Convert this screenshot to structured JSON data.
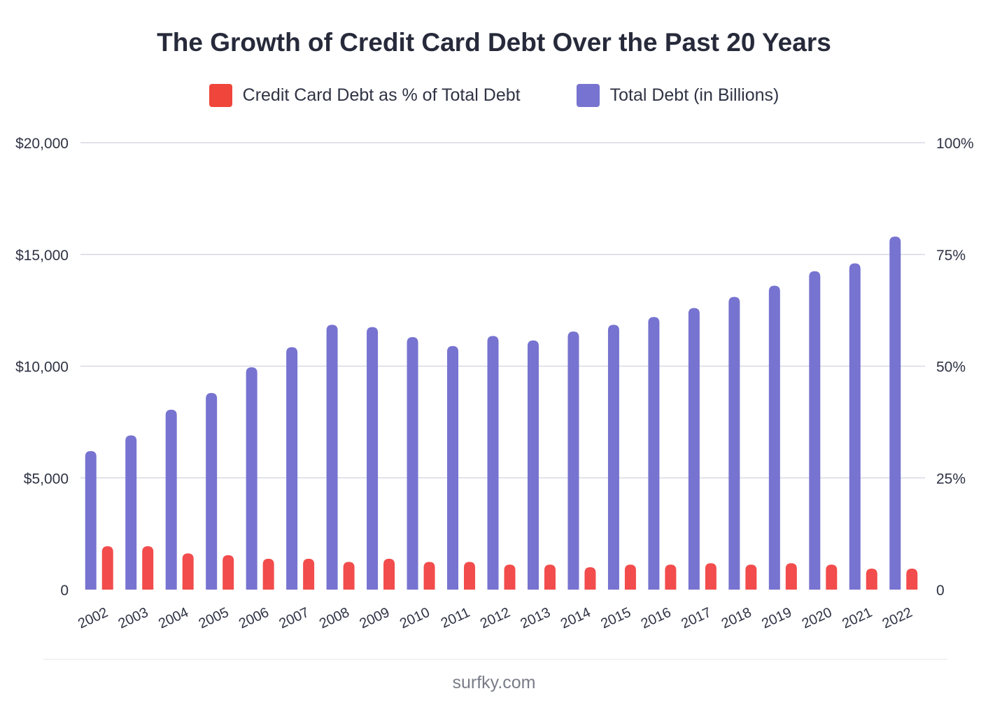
{
  "chart_data": {
    "type": "bar",
    "title": "The Growth of Credit Card Debt Over the Past 20 Years",
    "categories": [
      "2002",
      "2003",
      "2004",
      "2005",
      "2006",
      "2007",
      "2008",
      "2009",
      "2010",
      "2011",
      "2012",
      "2013",
      "2014",
      "2015",
      "2016",
      "2017",
      "2018",
      "2019",
      "2020",
      "2021",
      "2022"
    ],
    "series": [
      {
        "name": "Total Debt (in Billions)",
        "axis": "left",
        "color": "#7773d0",
        "values": [
          6200,
          6900,
          8050,
          8800,
          9950,
          10850,
          11850,
          11750,
          11300,
          10900,
          11350,
          11150,
          11550,
          11850,
          12200,
          12600,
          13100,
          13600,
          14250,
          14600,
          15800
        ]
      },
      {
        "name": "Credit Card Debt as % of Total Debt",
        "axis": "right",
        "color": "#f24c4c",
        "values": [
          9.7,
          9.7,
          8.1,
          7.7,
          6.9,
          6.9,
          6.2,
          6.9,
          6.2,
          6.2,
          5.6,
          5.6,
          5.0,
          5.6,
          5.6,
          5.9,
          5.6,
          5.9,
          5.6,
          4.7,
          4.7
        ]
      }
    ],
    "y_left": {
      "ylim": [
        0,
        20000
      ],
      "ticks": [
        0,
        5000,
        10000,
        15000,
        20000
      ],
      "tick_labels": [
        "0",
        "$5,000",
        "$10,000",
        "$15,000",
        "$20,000"
      ]
    },
    "y_right": {
      "ylim": [
        0,
        100
      ],
      "ticks": [
        0,
        25,
        50,
        75,
        100
      ],
      "tick_labels": [
        "0",
        "25%",
        "50%",
        "75%",
        "100%"
      ]
    },
    "legend_position": "top-center",
    "grid": true,
    "gridline_color": "#d8d8e6"
  },
  "footer": {
    "source": "surfky.com"
  }
}
